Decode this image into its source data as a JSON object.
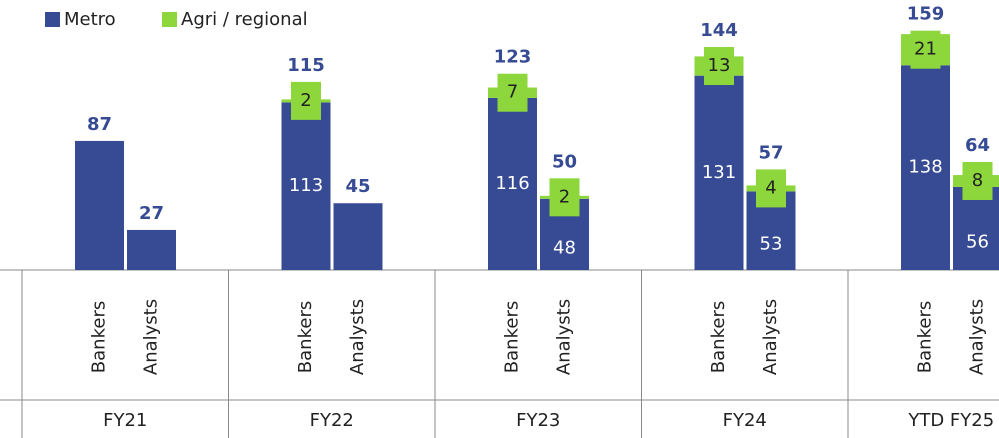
{
  "chart_data": {
    "type": "grouped-stacked-bar",
    "groups": [
      "FY21",
      "FY22",
      "FY23",
      "FY24",
      "YTD FY25"
    ],
    "subcategories": [
      "Bankers",
      "Analysts"
    ],
    "series": [
      {
        "name": "Metro",
        "color": "#364b93",
        "values": [
          87,
          27,
          113,
          45,
          116,
          48,
          131,
          53,
          138,
          56
        ],
        "value_labels": [
          null,
          null,
          "113",
          null,
          "116",
          "48",
          "131",
          "53",
          "138",
          "56"
        ]
      },
      {
        "name": "Agri / regional",
        "color": "#8dd63c",
        "values": [
          null,
          null,
          2,
          null,
          7,
          2,
          13,
          4,
          21,
          8
        ]
      }
    ],
    "totals": [
      87,
      27,
      115,
      45,
      123,
      50,
      144,
      57,
      159,
      64
    ],
    "ylim": [
      0,
      182
    ]
  }
}
